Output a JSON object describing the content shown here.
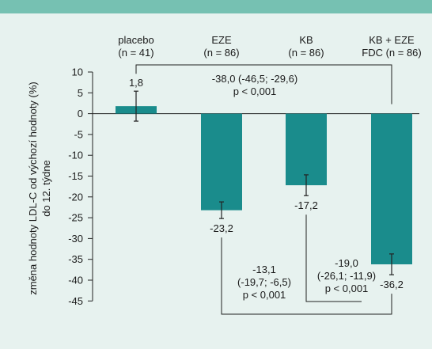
{
  "chart_data": {
    "type": "bar",
    "categories": [
      {
        "line1": "placebo",
        "line2": "(n = 41)"
      },
      {
        "line1": "EZE",
        "line2": "(n = 86)"
      },
      {
        "line1": "KB",
        "line2": "(n = 86)"
      },
      {
        "line1": "KB + EZE",
        "line2": "FDC (n = 86)"
      }
    ],
    "values": [
      1.8,
      -23.2,
      -17.2,
      -36.2
    ],
    "error_low": [
      -1.8,
      -25.2,
      -19.7,
      -38.7
    ],
    "error_high": [
      5.4,
      -21.2,
      -14.7,
      -33.7
    ],
    "value_labels": [
      "1,8",
      "-23,2",
      "-17,2",
      "-36,2"
    ],
    "ylabel_line1": "změna hodnoty LDL-C od výchozí hodnoty (%)",
    "ylabel_line2": "do 12. týdne",
    "ylim": [
      -45,
      10
    ],
    "yticks": [
      10,
      5,
      0,
      -5,
      -10,
      -15,
      -20,
      -25,
      -30,
      -35,
      -40,
      -45
    ],
    "ytick_labels": [
      "10",
      "5",
      "0",
      "-5",
      "-10",
      "-15",
      "-20",
      "-25",
      "-30",
      "-35",
      "-40",
      "-45"
    ],
    "bar_color": "#1a8c8c",
    "comparisons": [
      {
        "from": 0,
        "to": 3,
        "line1": "-38,0 (-46,5; -29,6)",
        "line2": "p < 0,001"
      },
      {
        "from": 1,
        "to": 3,
        "line1": "-13,1",
        "line2": "(-19,7; -6,5)",
        "line3": "p < 0,001"
      },
      {
        "from": 2,
        "to": 3,
        "line1": "-19,0",
        "line2": "(-26,1; -11,9)",
        "line3": "p < 0,001"
      }
    ]
  }
}
